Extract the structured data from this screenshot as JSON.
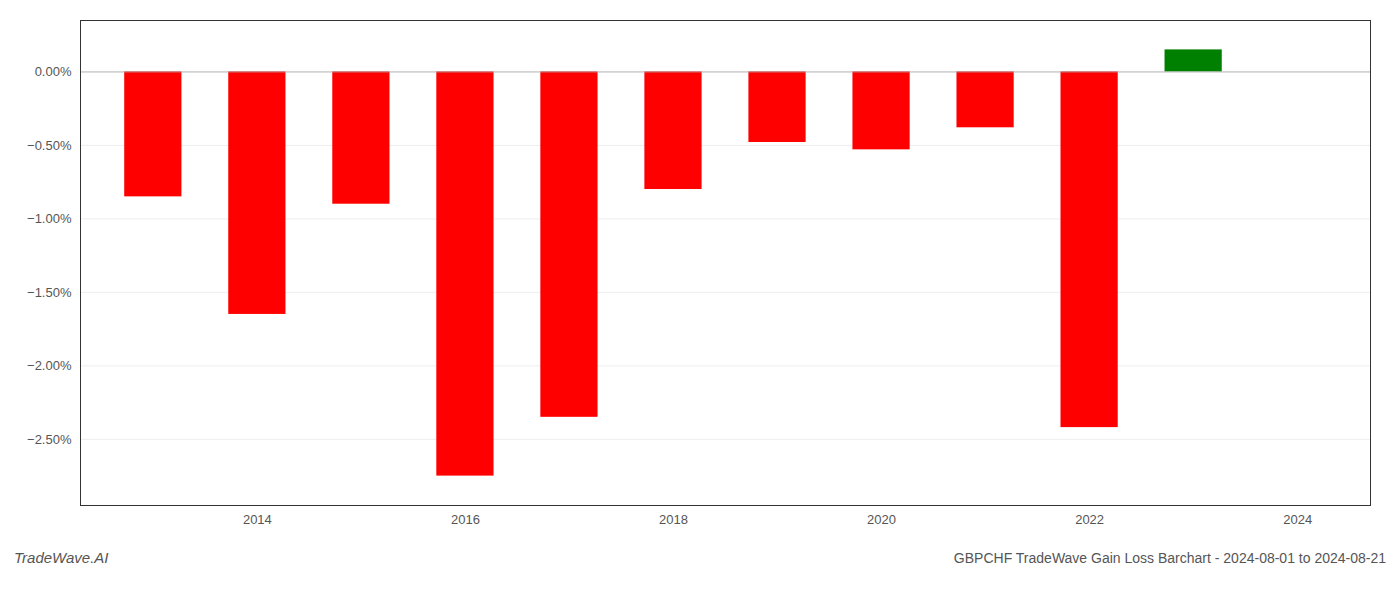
{
  "chart_data": {
    "type": "bar",
    "title": "GBPCHF TradeWave Gain Loss Barchart - 2024-08-01 to 2024-08-21",
    "annotations": [
      "TradeWave.AI"
    ],
    "x": [
      2013,
      2014,
      2015,
      2016,
      2017,
      2018,
      2019,
      2020,
      2021,
      2022,
      2023
    ],
    "values": [
      -0.85,
      -1.65,
      -0.9,
      -2.75,
      -2.35,
      -0.8,
      -0.48,
      -0.53,
      -0.38,
      -2.42,
      0.15
    ],
    "colors": [
      "#ff0000",
      "#ff0000",
      "#ff0000",
      "#ff0000",
      "#ff0000",
      "#ff0000",
      "#ff0000",
      "#ff0000",
      "#ff0000",
      "#ff0000",
      "#008000"
    ],
    "xlim": [
      2012.3,
      2024.7
    ],
    "xticks": [
      2014,
      2016,
      2018,
      2020,
      2022,
      2024
    ],
    "ylim": [
      -2.95,
      0.35
    ],
    "yticks": [
      {
        "value": 0.0,
        "label": "0.00%"
      },
      {
        "value": -0.5,
        "label": "−0.50%"
      },
      {
        "value": -1.0,
        "label": "−1.00%"
      },
      {
        "value": -1.5,
        "label": "−1.50%"
      },
      {
        "value": -2.0,
        "label": "−2.00%"
      },
      {
        "value": -2.5,
        "label": "−2.50%"
      }
    ],
    "grid": true
  }
}
